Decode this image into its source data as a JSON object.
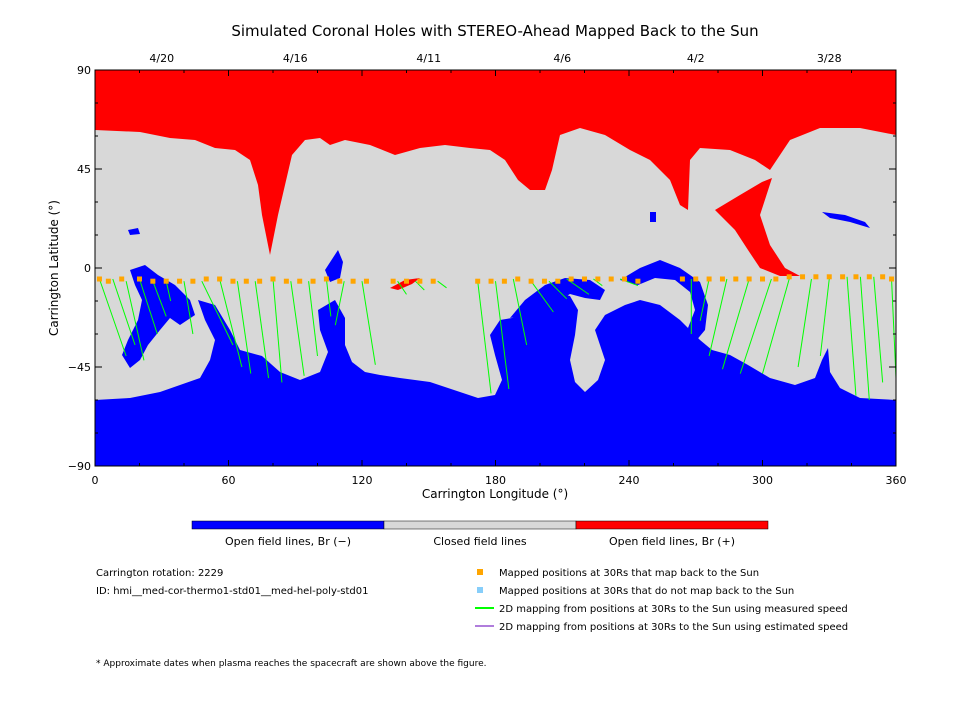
{
  "chart_data": {
    "type": "heatmap",
    "title": "Simulated Coronal Holes with STEREO-Ahead Mapped Back to the Sun",
    "xlabel": "Carrington Longitude (°)",
    "ylabel": "Carrington Latitude (°)",
    "xlim": [
      0,
      360
    ],
    "ylim": [
      -90,
      90
    ],
    "x_ticks": [
      "0",
      "60",
      "120",
      "180",
      "240",
      "300",
      "360"
    ],
    "y_ticks": [
      "90",
      "45",
      "0",
      "−45",
      "−90"
    ],
    "top_date_labels": [
      {
        "label": "4/20",
        "longitude": 30
      },
      {
        "label": "4/16",
        "longitude": 90
      },
      {
        "label": "4/11",
        "longitude": 150
      },
      {
        "label": "4/6",
        "longitude": 210
      },
      {
        "label": "4/2",
        "longitude": 270
      },
      {
        "label": "3/28",
        "longitude": 330
      }
    ],
    "colorbar": {
      "segments": [
        {
          "label": "Open field lines, Br (−)",
          "color": "#0000ff"
        },
        {
          "label": "Closed field lines",
          "color": "#d8d8d8"
        },
        {
          "label": "Open field lines, Br (+)",
          "color": "#ff0000"
        }
      ]
    },
    "mapped_lines": [
      {
        "lon30": 2,
        "lat30": -5,
        "lonSun": 14,
        "latSun": -40
      },
      {
        "lon30": 8,
        "lat30": -5,
        "lonSun": 18,
        "latSun": -35
      },
      {
        "lon30": 14,
        "lat30": -6,
        "lonSun": 22,
        "latSun": -42
      },
      {
        "lon30": 20,
        "lat30": -5,
        "lonSun": 28,
        "latSun": -30
      },
      {
        "lon30": 26,
        "lat30": -6,
        "lonSun": 32,
        "latSun": -22
      },
      {
        "lon30": 32,
        "lat30": -6,
        "lonSun": 34,
        "latSun": -15
      },
      {
        "lon30": 40,
        "lat30": -6,
        "lonSun": 44,
        "latSun": -30
      },
      {
        "lon30": 48,
        "lat30": -6,
        "lonSun": 62,
        "latSun": -35
      },
      {
        "lon30": 56,
        "lat30": -5,
        "lonSun": 66,
        "latSun": -45
      },
      {
        "lon30": 64,
        "lat30": -6,
        "lonSun": 70,
        "latSun": -48
      },
      {
        "lon30": 72,
        "lat30": -6,
        "lonSun": 78,
        "latSun": -50
      },
      {
        "lon30": 80,
        "lat30": -5,
        "lonSun": 84,
        "latSun": -52
      },
      {
        "lon30": 88,
        "lat30": -6,
        "lonSun": 94,
        "latSun": -49
      },
      {
        "lon30": 96,
        "lat30": -6,
        "lonSun": 100,
        "latSun": -40
      },
      {
        "lon30": 104,
        "lat30": -5,
        "lonSun": 106,
        "latSun": -22
      },
      {
        "lon30": 112,
        "lat30": -6,
        "lonSun": 108,
        "latSun": -26
      },
      {
        "lon30": 120,
        "lat30": -6,
        "lonSun": 126,
        "latSun": -44
      },
      {
        "lon30": 136,
        "lat30": -6,
        "lonSun": 140,
        "latSun": -12
      },
      {
        "lon30": 144,
        "lat30": -6,
        "lonSun": 148,
        "latSun": -10
      },
      {
        "lon30": 154,
        "lat30": -6,
        "lonSun": 158,
        "latSun": -9
      },
      {
        "lon30": 172,
        "lat30": -6,
        "lonSun": 178,
        "latSun": -57
      },
      {
        "lon30": 180,
        "lat30": -6,
        "lonSun": 186,
        "latSun": -55
      },
      {
        "lon30": 188,
        "lat30": -5,
        "lonSun": 194,
        "latSun": -35
      },
      {
        "lon30": 196,
        "lat30": -6,
        "lonSun": 206,
        "latSun": -20
      },
      {
        "lon30": 204,
        "lat30": -6,
        "lonSun": 212,
        "latSun": -14
      },
      {
        "lon30": 212,
        "lat30": -5,
        "lonSun": 222,
        "latSun": -12
      },
      {
        "lon30": 224,
        "lat30": -5,
        "lonSun": 228,
        "latSun": -8
      },
      {
        "lon30": 236,
        "lat30": -5,
        "lonSun": 244,
        "latSun": -8
      },
      {
        "lon30": 268,
        "lat30": -5,
        "lonSun": 268,
        "latSun": -30
      },
      {
        "lon30": 276,
        "lat30": -5,
        "lonSun": 272,
        "latSun": -24
      },
      {
        "lon30": 284,
        "lat30": -5,
        "lonSun": 276,
        "latSun": -40
      },
      {
        "lon30": 294,
        "lat30": -5,
        "lonSun": 282,
        "latSun": -46
      },
      {
        "lon30": 304,
        "lat30": -5,
        "lonSun": 290,
        "latSun": -48
      },
      {
        "lon30": 312,
        "lat30": -5,
        "lonSun": 300,
        "latSun": -48
      },
      {
        "lon30": 322,
        "lat30": -5,
        "lonSun": 316,
        "latSun": -45
      },
      {
        "lon30": 330,
        "lat30": -5,
        "lonSun": 326,
        "latSun": -40
      },
      {
        "lon30": 338,
        "lat30": -4,
        "lonSun": 342,
        "latSun": -58
      },
      {
        "lon30": 344,
        "lat30": -4,
        "lonSun": 348,
        "latSun": -60
      },
      {
        "lon30": 350,
        "lat30": -4,
        "lonSun": 354,
        "latSun": -52
      },
      {
        "lon30": 358,
        "lat30": -5,
        "lonSun": 360,
        "latSun": -50
      }
    ],
    "mapped_points_30Rs": [
      {
        "lon": 2,
        "lat": -5
      },
      {
        "lon": 6,
        "lat": -6
      },
      {
        "lon": 12,
        "lat": -5
      },
      {
        "lon": 20,
        "lat": -5
      },
      {
        "lon": 26,
        "lat": -6
      },
      {
        "lon": 32,
        "lat": -6
      },
      {
        "lon": 38,
        "lat": -6
      },
      {
        "lon": 44,
        "lat": -6
      },
      {
        "lon": 50,
        "lat": -5
      },
      {
        "lon": 56,
        "lat": -5
      },
      {
        "lon": 62,
        "lat": -6
      },
      {
        "lon": 68,
        "lat": -6
      },
      {
        "lon": 74,
        "lat": -6
      },
      {
        "lon": 80,
        "lat": -5
      },
      {
        "lon": 86,
        "lat": -6
      },
      {
        "lon": 92,
        "lat": -6
      },
      {
        "lon": 98,
        "lat": -6
      },
      {
        "lon": 104,
        "lat": -5
      },
      {
        "lon": 110,
        "lat": -6
      },
      {
        "lon": 116,
        "lat": -6
      },
      {
        "lon": 122,
        "lat": -6
      },
      {
        "lon": 134,
        "lat": -6
      },
      {
        "lon": 140,
        "lat": -6
      },
      {
        "lon": 146,
        "lat": -6
      },
      {
        "lon": 152,
        "lat": -6
      },
      {
        "lon": 172,
        "lat": -6
      },
      {
        "lon": 178,
        "lat": -6
      },
      {
        "lon": 184,
        "lat": -6
      },
      {
        "lon": 190,
        "lat": -5
      },
      {
        "lon": 196,
        "lat": -6
      },
      {
        "lon": 202,
        "lat": -6
      },
      {
        "lon": 208,
        "lat": -6
      },
      {
        "lon": 214,
        "lat": -5
      },
      {
        "lon": 220,
        "lat": -5
      },
      {
        "lon": 226,
        "lat": -5
      },
      {
        "lon": 232,
        "lat": -5
      },
      {
        "lon": 238,
        "lat": -5
      },
      {
        "lon": 244,
        "lat": -6
      },
      {
        "lon": 264,
        "lat": -5
      },
      {
        "lon": 270,
        "lat": -5
      },
      {
        "lon": 276,
        "lat": -5
      },
      {
        "lon": 282,
        "lat": -5
      },
      {
        "lon": 288,
        "lat": -5
      },
      {
        "lon": 294,
        "lat": -5
      },
      {
        "lon": 300,
        "lat": -5
      },
      {
        "lon": 306,
        "lat": -5
      },
      {
        "lon": 312,
        "lat": -4
      },
      {
        "lon": 318,
        "lat": -4
      },
      {
        "lon": 324,
        "lat": -4
      },
      {
        "lon": 330,
        "lat": -4
      },
      {
        "lon": 336,
        "lat": -4
      },
      {
        "lon": 342,
        "lat": -4
      },
      {
        "lon": 348,
        "lat": -4
      },
      {
        "lon": 354,
        "lat": -4
      },
      {
        "lon": 358,
        "lat": -5
      }
    ]
  },
  "info": {
    "rotation": "Carrington rotation: 2229",
    "model_id": "ID: hmi__med-cor-thermo1-std01__med-hel-poly-std01"
  },
  "legend": [
    {
      "label": "Mapped positions at 30Rs that map back to the Sun",
      "color": "#ffa500",
      "kind": "square"
    },
    {
      "label": "Mapped positions at 30Rs that do not map back to the Sun",
      "color": "#87cefa",
      "kind": "square"
    },
    {
      "label": "2D mapping from positions at 30Rs to the Sun using measured speed",
      "color": "#00ff00",
      "kind": "line"
    },
    {
      "label": "2D mapping from positions at 30Rs to the Sun using estimated speed",
      "color": "#b07ddc",
      "kind": "line"
    }
  ],
  "footnote": "* Approximate dates when plasma reaches the spacecraft are shown above the figure."
}
